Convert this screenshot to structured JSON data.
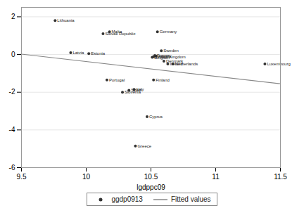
{
  "chart_data": {
    "type": "scatter",
    "xlabel": "lgdppc09",
    "xlim": [
      9.5,
      11.5
    ],
    "ylim": [
      -6.0,
      2.5
    ],
    "xticks": [
      9.5,
      10,
      10.5,
      11,
      11.5
    ],
    "yticks": [
      2,
      0,
      -2,
      -4,
      -6
    ],
    "grid": "y",
    "legend": "bottom",
    "series": [
      {
        "name": "ggdp0913",
        "type": "scatter",
        "color": "#333333",
        "marker": "circle",
        "labels": [
          "Lithuania",
          "Malta",
          "Slovak Republic",
          "Germany",
          "Latvia",
          "Estonia",
          "Sweden",
          "Austria",
          "United Kingdom",
          "Belgium",
          "France",
          "Denmark",
          "Ireland",
          "Netherlands",
          "Portugal",
          "Finland",
          "Spain",
          "Slovenia",
          "Italy",
          "Cyprus",
          "Greece",
          "Luxembourg"
        ],
        "x": [
          9.76,
          10.18,
          10.13,
          10.55,
          9.88,
          10.02,
          10.58,
          10.54,
          10.52,
          10.51,
          10.53,
          10.6,
          10.63,
          10.67,
          10.16,
          10.52,
          10.33,
          10.28,
          10.37,
          10.47,
          10.38,
          11.38
        ],
        "values": [
          1.8,
          1.2,
          1.1,
          1.2,
          0.1,
          0.05,
          0.2,
          -0.08,
          -0.12,
          -0.15,
          -0.05,
          -0.35,
          -0.5,
          -0.5,
          -1.35,
          -1.35,
          -1.9,
          -2.0,
          -1.85,
          -3.3,
          -4.85,
          -0.5
        ]
      },
      {
        "name": "Fitted values",
        "type": "line",
        "color": "#888888",
        "line_style": "solid",
        "x": [
          9.5,
          11.5
        ],
        "values": [
          0.02,
          -1.55
        ]
      }
    ]
  }
}
